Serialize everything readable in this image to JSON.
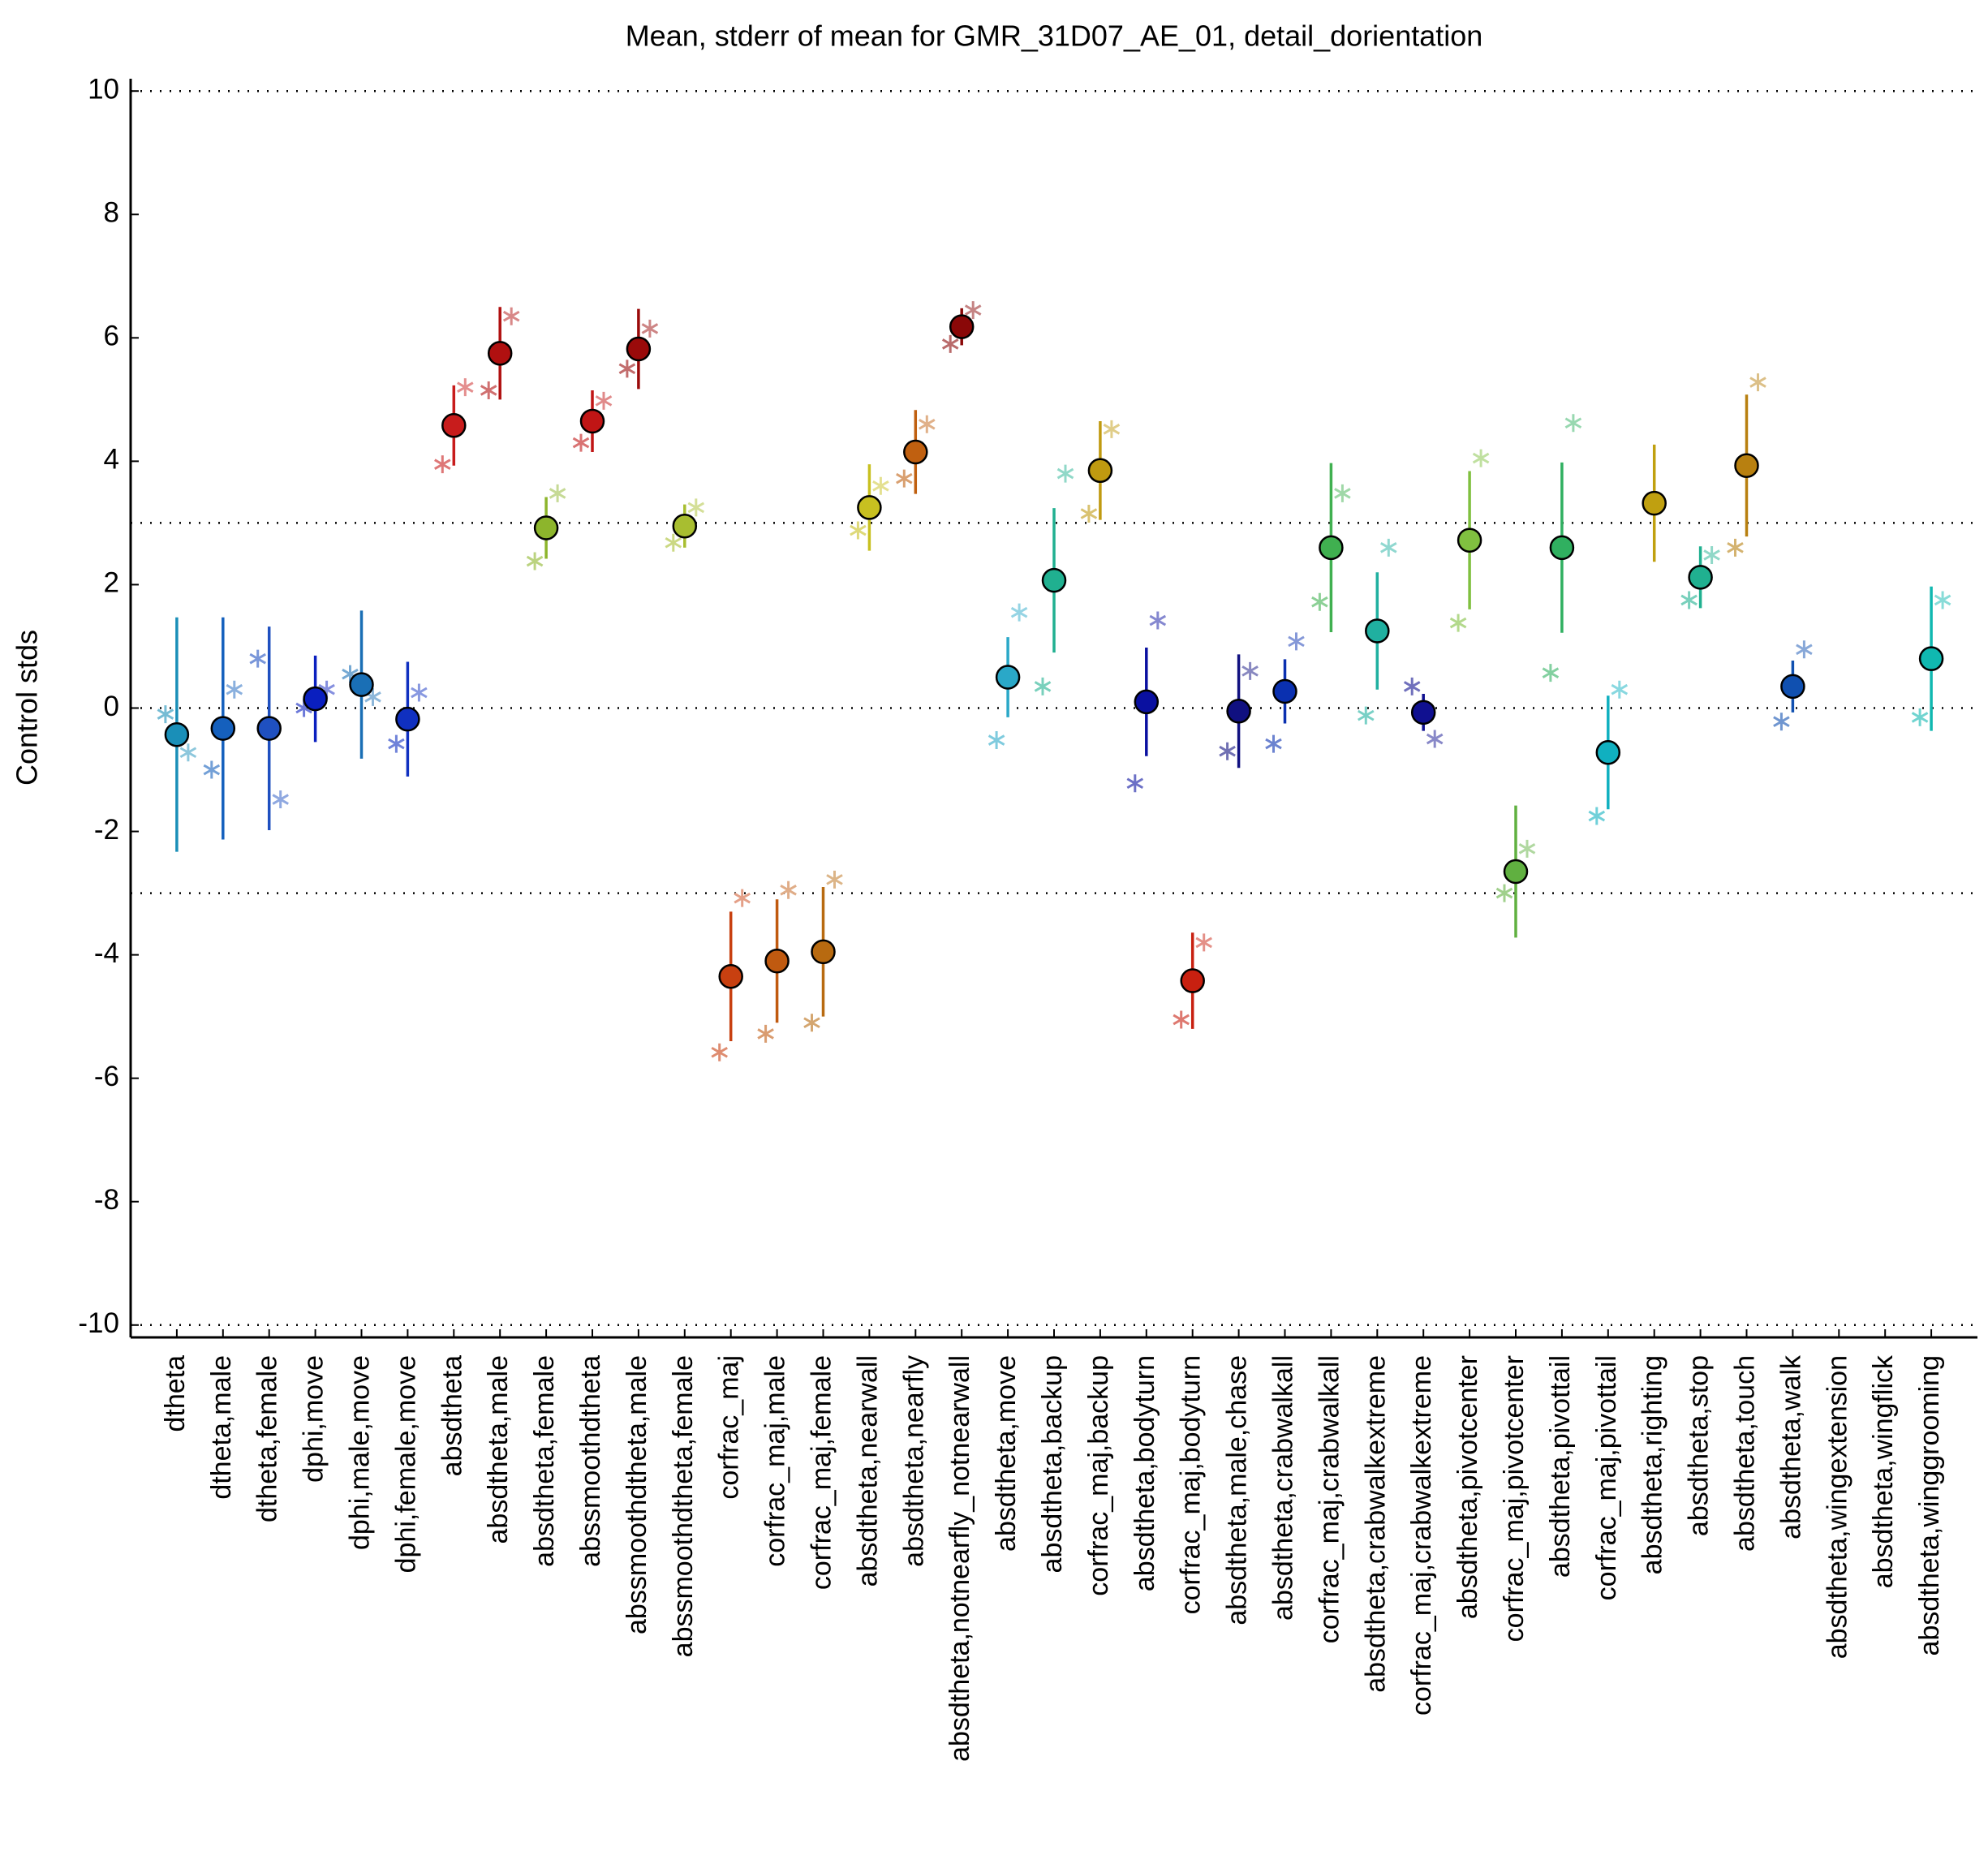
{
  "chart_data": {
    "type": "errorbar",
    "title": "Mean, stderr of mean for GMR_31D07_AE_01, detail_dorientation",
    "ylabel": "Control stds",
    "categories": [
      "dtheta",
      "dtheta,male",
      "dtheta,female",
      "dphi,move",
      "dphi,male,move",
      "dphi,female,move",
      "absdtheta",
      "absdtheta,male",
      "absdtheta,female",
      "abssmoothdtheta",
      "abssmoothdtheta,male",
      "abssmoothdtheta,female",
      "corfrac_maj",
      "corfrac_maj,male",
      "corfrac_maj,female",
      "absdtheta,nearwall",
      "absdtheta,nearfly",
      "absdtheta,notnearfly_notnearwall",
      "absdtheta,move",
      "absdtheta,backup",
      "corfrac_maj,backup",
      "absdtheta,bodyturn",
      "corfrac_maj,bodyturn",
      "absdtheta,male,chase",
      "absdtheta,crabwalkall",
      "corfrac_maj,crabwalkall",
      "absdtheta,crabwalkextreme",
      "corfrac_maj,crabwalkextreme",
      "absdtheta,pivotcenter",
      "corfrac_maj,pivotcenter",
      "absdtheta,pivottail",
      "corfrac_maj,pivottail",
      "absdtheta,righting",
      "absdtheta,stop",
      "absdtheta,touch",
      "absdtheta,walk",
      "absdtheta,wingextension",
      "absdtheta,wingflick",
      "absdtheta,winggrooming"
    ],
    "values": [
      -0.43,
      -0.33,
      -0.33,
      0.15,
      0.38,
      -0.18,
      4.58,
      5.75,
      2.92,
      4.65,
      5.82,
      2.95,
      -4.35,
      -4.1,
      -3.95,
      3.25,
      4.15,
      6.18,
      0.5,
      2.07,
      3.85,
      0.1,
      -4.42,
      -0.05,
      0.27,
      2.6,
      1.25,
      -0.07,
      2.72,
      -2.65,
      2.6,
      -0.72,
      3.32,
      2.12,
      3.93,
      0.35,
      null,
      null,
      0.8
    ],
    "errors": [
      1.9,
      1.8,
      1.65,
      0.7,
      1.2,
      0.93,
      0.65,
      0.75,
      0.5,
      0.5,
      0.65,
      0.35,
      1.05,
      1.0,
      1.05,
      0.7,
      0.68,
      0.3,
      0.65,
      1.17,
      0.8,
      0.88,
      0.78,
      0.92,
      0.52,
      1.37,
      0.95,
      0.3,
      1.12,
      1.07,
      1.38,
      0.92,
      0.95,
      0.5,
      1.15,
      0.42,
      null,
      null,
      1.17
    ],
    "left_values": [
      -0.1,
      -1.0,
      0.8,
      0.0,
      0.55,
      -0.58,
      3.95,
      5.15,
      2.38,
      4.3,
      5.5,
      2.68,
      -5.58,
      -5.28,
      -5.1,
      2.88,
      3.72,
      5.9,
      -0.52,
      0.35,
      3.15,
      -1.22,
      -5.05,
      -0.7,
      -0.58,
      1.72,
      -0.12,
      0.35,
      1.38,
      -3.0,
      0.57,
      -1.75,
      null,
      1.75,
      2.6,
      -0.22,
      null,
      null,
      -0.15
    ],
    "right_values": [
      -0.72,
      0.3,
      -1.48,
      0.3,
      0.18,
      0.25,
      5.2,
      6.35,
      3.48,
      4.98,
      6.15,
      3.25,
      -3.08,
      -2.95,
      -2.78,
      3.6,
      4.6,
      6.45,
      1.55,
      3.8,
      4.52,
      1.42,
      -3.8,
      0.6,
      1.08,
      3.48,
      2.6,
      -0.5,
      4.05,
      -2.28,
      4.62,
      0.3,
      null,
      2.48,
      5.28,
      0.95,
      null,
      null,
      1.75
    ],
    "colors": [
      "#1a8fb8",
      "#1560bd",
      "#1f50c0",
      "#0a1fbf",
      "#1a6fb5",
      "#1030c0",
      "#c81c1c",
      "#b01010",
      "#8db52c",
      "#c01515",
      "#9a0a0a",
      "#a8be30",
      "#c84010",
      "#c05a10",
      "#b86a10",
      "#c8c020",
      "#c06010",
      "#8a0808",
      "#2aa8c8",
      "#20b090",
      "#c09a10",
      "#0a10a0",
      "#c82010",
      "#101080",
      "#0a30b0",
      "#40b050",
      "#20b0a0",
      "#101090",
      "#80c040",
      "#60b040",
      "#30b060",
      "#10b0c0",
      "#c0a010",
      "#20b090",
      "#b88010",
      "#1050b0",
      "#999999",
      "#999999",
      "#10b8b0"
    ],
    "xlim": [
      0,
      40
    ],
    "ylim": [
      -10.2,
      10.2
    ],
    "yticks": [
      -10,
      -8,
      -6,
      -4,
      -2,
      0,
      2,
      4,
      6,
      8,
      10
    ],
    "reference_lines": [
      -10,
      -3,
      0,
      3,
      10
    ]
  }
}
